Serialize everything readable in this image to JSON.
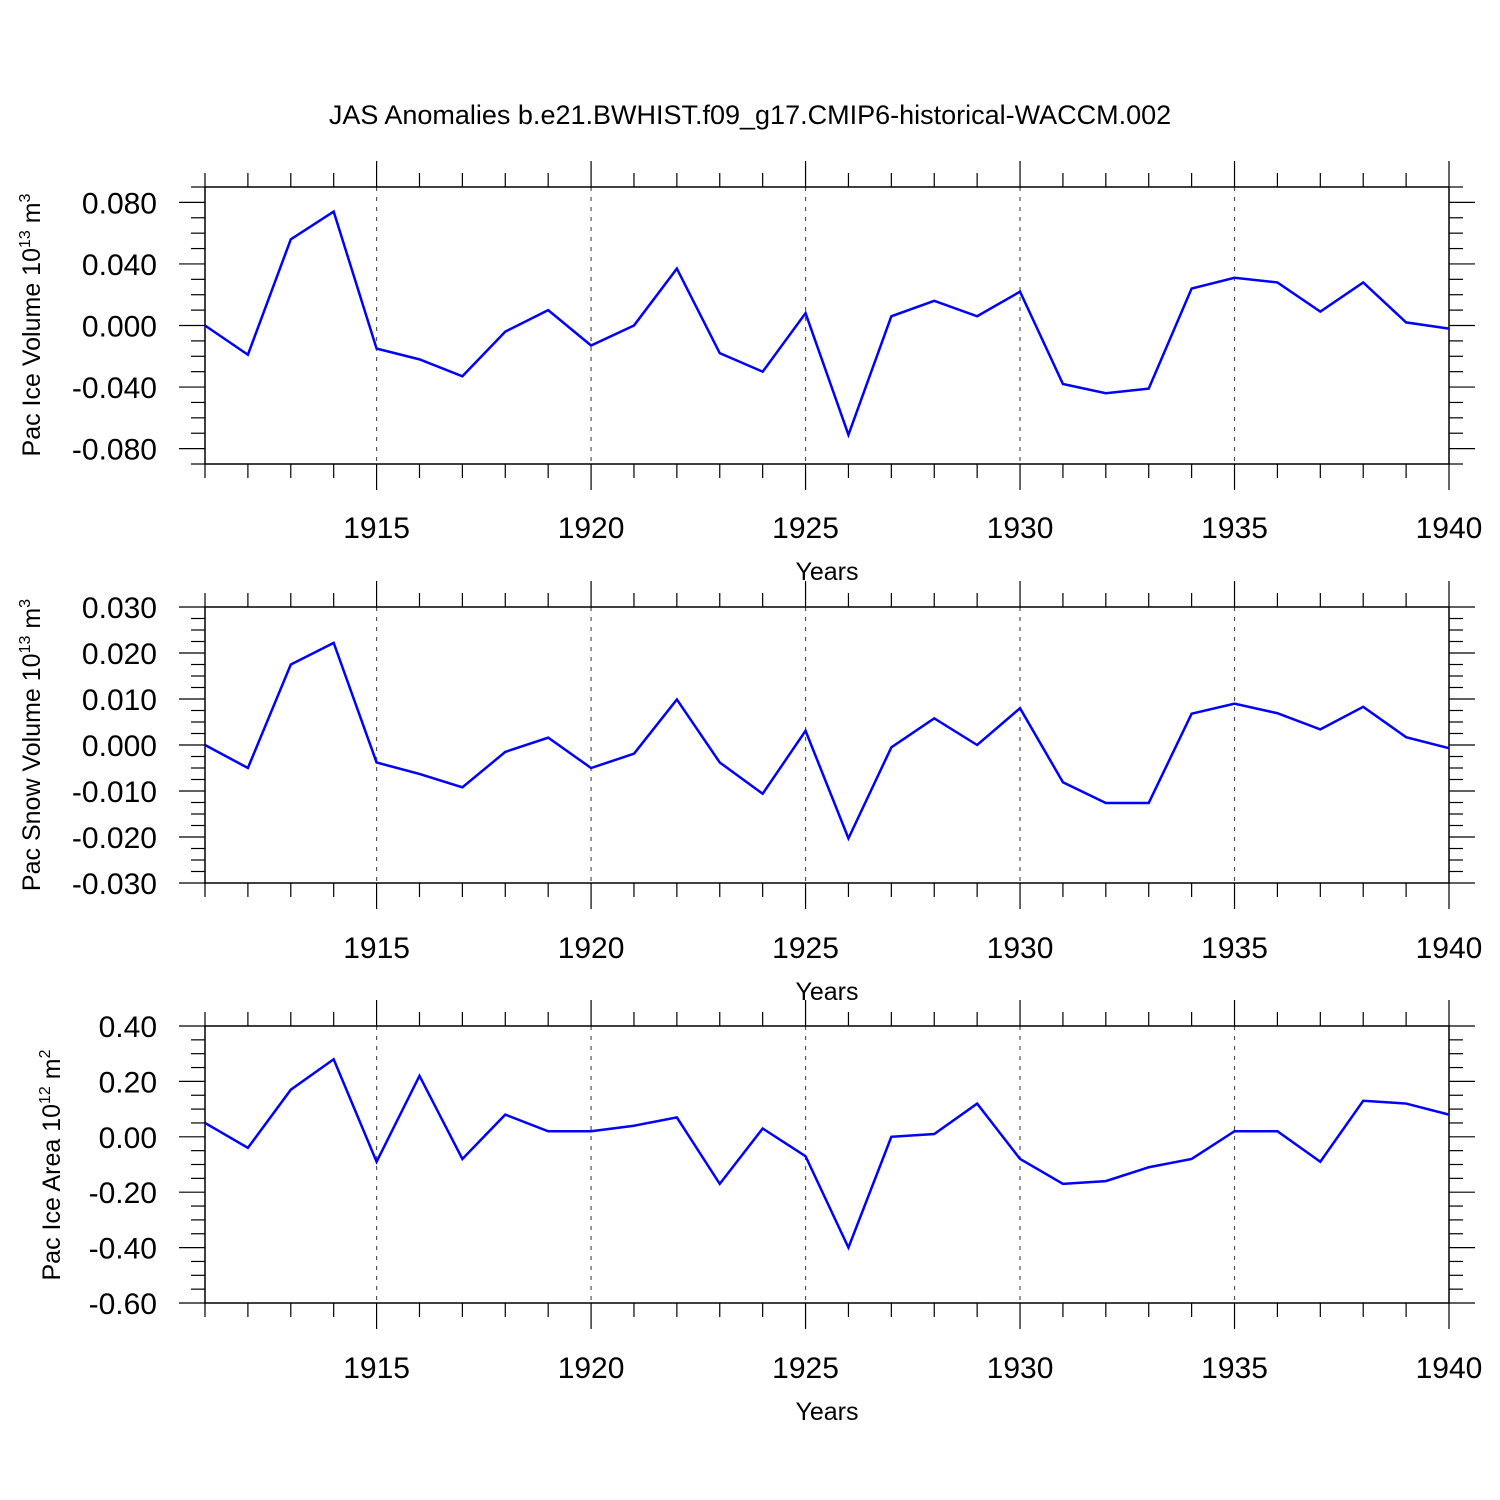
{
  "title": "JAS Anomalies b.e21.BWHIST.f09_g17.CMIP6-historical-WACCM.002",
  "colors": {
    "series": "#0000ff",
    "axes": "#000000",
    "grid": "#555555"
  },
  "chart_data": [
    {
      "type": "line",
      "xlabel": "Years",
      "ylabel": {
        "text": "Pac Ice Volume 10",
        "exp": "13",
        "unit": " m",
        "unit_exp": "3"
      },
      "xlim": [
        1911,
        1940
      ],
      "ylim": [
        -0.09,
        0.09
      ],
      "yticks": [
        0.08,
        0.04,
        0.0,
        -0.04,
        -0.08
      ],
      "ytick_labels": [
        "0.080",
        "0.040",
        "0.000",
        "-0.040",
        "-0.080"
      ],
      "xticks": [
        1915,
        1920,
        1925,
        1930,
        1935,
        1940
      ],
      "xtick_labels": [
        "1915",
        "1920",
        "1925",
        "1930",
        "1935",
        "1940"
      ],
      "grid": "vertical dashed at major x ticks",
      "x": [
        1911,
        1912,
        1913,
        1914,
        1915,
        1916,
        1917,
        1918,
        1919,
        1920,
        1921,
        1922,
        1923,
        1924,
        1925,
        1926,
        1927,
        1928,
        1929,
        1930,
        1931,
        1932,
        1933,
        1934,
        1935,
        1936,
        1937,
        1938,
        1939,
        1940
      ],
      "series": [
        {
          "values": [
            0.0,
            -0.019,
            0.056,
            0.074,
            -0.015,
            -0.022,
            -0.033,
            -0.004,
            0.01,
            -0.013,
            0.0,
            0.037,
            -0.018,
            -0.03,
            0.008,
            -0.071,
            0.006,
            0.016,
            0.006,
            0.022,
            -0.038,
            -0.044,
            -0.041,
            0.024,
            0.031,
            0.028,
            0.009,
            0.028,
            0.002,
            -0.002
          ]
        }
      ]
    },
    {
      "type": "line",
      "xlabel": "Years",
      "ylabel": {
        "text": "Pac Snow Volume 10",
        "exp": "13",
        "unit": " m",
        "unit_exp": "3"
      },
      "xlim": [
        1911,
        1940
      ],
      "ylim": [
        -0.03,
        0.03
      ],
      "yticks": [
        0.03,
        0.02,
        0.01,
        0.0,
        -0.01,
        -0.02,
        -0.03
      ],
      "ytick_labels": [
        "0.030",
        "0.020",
        "0.010",
        "0.000",
        "-0.010",
        "-0.020",
        "-0.030"
      ],
      "xticks": [
        1915,
        1920,
        1925,
        1930,
        1935,
        1940
      ],
      "xtick_labels": [
        "1915",
        "1920",
        "1925",
        "1930",
        "1935",
        "1940"
      ],
      "grid": "vertical dashed at major x ticks",
      "x": [
        1911,
        1912,
        1913,
        1914,
        1915,
        1916,
        1917,
        1918,
        1919,
        1920,
        1921,
        1922,
        1923,
        1924,
        1925,
        1926,
        1927,
        1928,
        1929,
        1930,
        1931,
        1932,
        1933,
        1934,
        1935,
        1936,
        1937,
        1938,
        1939,
        1940
      ],
      "series": [
        {
          "values": [
            0.0,
            -0.005,
            0.0175,
            0.0222,
            -0.0038,
            -0.0063,
            -0.0092,
            -0.0015,
            0.0016,
            -0.005,
            -0.0019,
            0.0099,
            -0.0038,
            -0.0106,
            0.0031,
            -0.0203,
            -0.0005,
            0.0058,
            0.0,
            0.008,
            -0.0081,
            -0.0126,
            -0.0126,
            0.0068,
            0.009,
            0.0069,
            0.0034,
            0.0083,
            0.0017,
            -0.0007
          ]
        }
      ]
    },
    {
      "type": "line",
      "xlabel": "Years",
      "ylabel": {
        "text": "Pac Ice Area 10",
        "exp": "12",
        "unit": " m",
        "unit_exp": "2"
      },
      "xlim": [
        1911,
        1940
      ],
      "ylim": [
        -0.6,
        0.4
      ],
      "yticks": [
        0.4,
        0.2,
        0.0,
        -0.2,
        -0.4,
        -0.6
      ],
      "ytick_labels": [
        "0.40",
        "0.20",
        "0.00",
        "-0.20",
        "-0.40",
        "-0.60"
      ],
      "xticks": [
        1915,
        1920,
        1925,
        1930,
        1935,
        1940
      ],
      "xtick_labels": [
        "1915",
        "1920",
        "1925",
        "1930",
        "1935",
        "1940"
      ],
      "grid": "vertical dashed at major x ticks",
      "x": [
        1911,
        1912,
        1913,
        1914,
        1915,
        1916,
        1917,
        1918,
        1919,
        1920,
        1921,
        1922,
        1923,
        1924,
        1925,
        1926,
        1927,
        1928,
        1929,
        1930,
        1931,
        1932,
        1933,
        1934,
        1935,
        1936,
        1937,
        1938,
        1939,
        1940
      ],
      "series": [
        {
          "values": [
            0.05,
            -0.04,
            0.17,
            0.28,
            -0.09,
            0.22,
            -0.08,
            0.08,
            0.02,
            0.02,
            0.04,
            0.07,
            -0.17,
            0.03,
            -0.07,
            -0.4,
            0.0,
            0.01,
            0.12,
            -0.08,
            -0.17,
            -0.16,
            -0.11,
            -0.08,
            0.02,
            0.02,
            -0.09,
            0.13,
            0.12,
            0.08
          ]
        }
      ]
    }
  ]
}
